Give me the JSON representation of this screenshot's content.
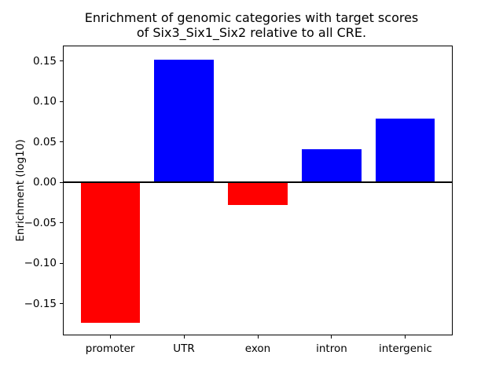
{
  "chart_data": {
    "type": "bar",
    "title": "Enrichment of genomic categories with target scores\nof Six3_Six1_Six2 relative to all CRE.",
    "xlabel": "",
    "ylabel": "Enrichment (log10)",
    "categories": [
      "promoter",
      "UTR",
      "exon",
      "intron",
      "intergenic"
    ],
    "values": [
      -0.173,
      0.152,
      -0.028,
      0.041,
      0.079
    ],
    "positive_color": "#0000ff",
    "negative_color": "#ff0000",
    "bar_colors": [
      "#ff0000",
      "#0000ff",
      "#ff0000",
      "#0000ff",
      "#0000ff"
    ],
    "yticks": [
      {
        "value": 0.15,
        "label": "0.15"
      },
      {
        "value": 0.1,
        "label": "0.10"
      },
      {
        "value": 0.05,
        "label": "0.05"
      },
      {
        "value": 0.0,
        "label": "0.00"
      },
      {
        "value": -0.05,
        "label": "−0.05"
      },
      {
        "value": -0.1,
        "label": "−0.10"
      },
      {
        "value": -0.15,
        "label": "−0.15"
      }
    ],
    "ylim": [
      -0.189,
      0.169
    ],
    "bar_width_fraction": 0.8,
    "zero_line": true,
    "grid": false,
    "legend": null
  }
}
